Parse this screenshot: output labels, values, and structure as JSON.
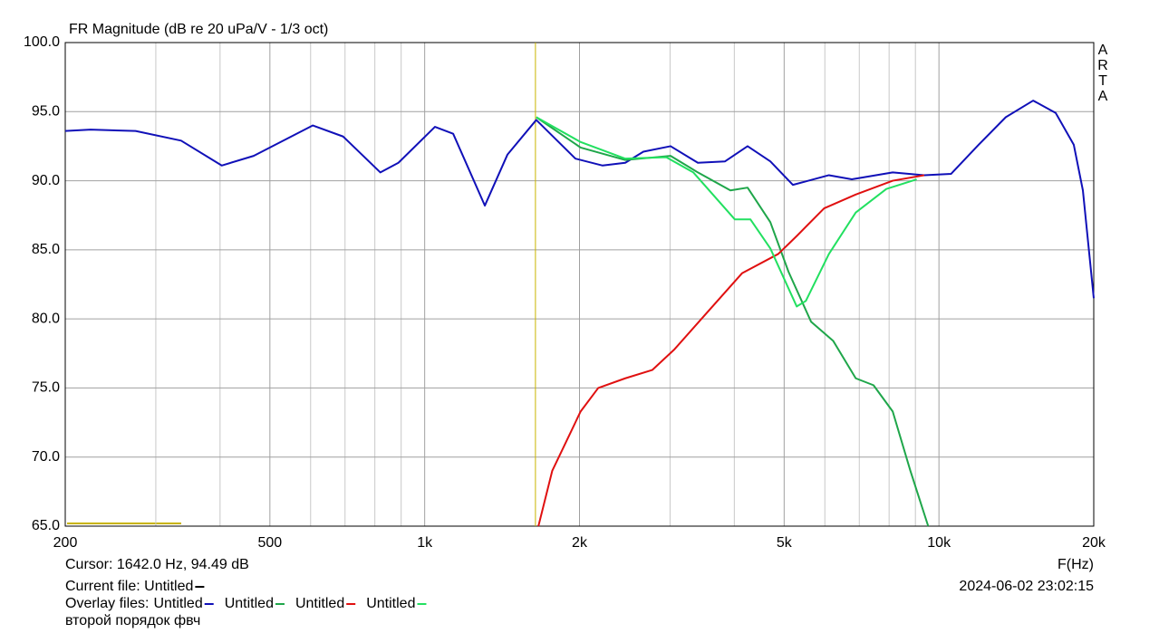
{
  "chart_data": {
    "type": "line",
    "title": "FR Magnitude (dB re 20 uPa/V - 1/3 oct)",
    "x_label": "F(Hz)",
    "side_label": "ARTA",
    "xlog": true,
    "grid": true,
    "xlim": [
      200,
      20000
    ],
    "ylim": [
      65,
      100
    ],
    "xticks": [
      200,
      500,
      {
        "value": 1000,
        "label": "1k"
      },
      {
        "value": 2000,
        "label": "2k"
      },
      {
        "value": 5000,
        "label": "5k"
      },
      {
        "value": 10000,
        "label": "10k"
      },
      {
        "value": 20000,
        "label": "20k"
      }
    ],
    "xgrid_minor": [
      300,
      400,
      600,
      700,
      800,
      900,
      3000,
      4000,
      6000,
      7000,
      8000,
      9000
    ],
    "yticks": [
      {
        "value": 100,
        "label": "100.0"
      },
      {
        "value": 95,
        "label": "95.0"
      },
      {
        "value": 90,
        "label": "90.0"
      },
      {
        "value": 85,
        "label": "85.0"
      },
      {
        "value": 80,
        "label": "80.0"
      },
      {
        "value": 75,
        "label": "75.0"
      },
      {
        "value": 70,
        "label": "70.0"
      },
      {
        "value": 65,
        "label": "65.0"
      }
    ],
    "cursor_x": 1642,
    "cursor_color": "#c8b400",
    "cursor_text": "Cursor: 1642.0 Hz, 94.49 dB",
    "current_file_label": "Current file: Untitled",
    "overlay_label": "Overlay files:",
    "timestamp": "2024-06-02  23:02:15",
    "note": "второй порядок фвч",
    "series": [
      {
        "name": "Untitled",
        "color": "#1010b8",
        "x": [
          200,
          224,
          274,
          336,
          403,
          465,
          606,
          694,
          820,
          889,
          1047,
          1136,
          1309,
          1449,
          1648,
          1964,
          2218,
          2455,
          2662,
          3007,
          3398,
          3837,
          4245,
          4700,
          5200,
          6110,
          6770,
          8130,
          9360,
          10560,
          11940,
          13490,
          15250,
          16870,
          18290,
          19050,
          20000
        ],
        "values": [
          93.6,
          93.7,
          93.6,
          92.9,
          91.1,
          91.8,
          94.0,
          93.2,
          90.6,
          91.3,
          93.9,
          93.4,
          88.2,
          91.9,
          94.4,
          91.6,
          91.1,
          91.3,
          92.1,
          92.5,
          91.3,
          91.4,
          92.5,
          91.4,
          89.7,
          90.4,
          90.1,
          90.6,
          90.4,
          90.5,
          92.6,
          94.6,
          95.8,
          94.9,
          92.6,
          89.3,
          81.5
        ]
      },
      {
        "name": "Untitled",
        "color": "#1fa64a",
        "x": [
          1648,
          2010,
          2455,
          3007,
          3398,
          3931,
          4245,
          4700,
          5100,
          5640,
          6230,
          6890,
          7460,
          8130,
          8800,
          9530
        ],
        "values": [
          94.6,
          92.4,
          91.5,
          91.8,
          90.6,
          89.3,
          89.5,
          87.0,
          83.4,
          79.8,
          78.4,
          75.7,
          75.2,
          73.3,
          69.0,
          65.0
        ]
      },
      {
        "name": "Untitled",
        "color": "#e01010",
        "x": [
          1664,
          1770,
          2010,
          2175,
          2455,
          2770,
          3060,
          3510,
          4140,
          4870,
          5290,
          5980,
          6890,
          8130,
          9360
        ],
        "values": [
          65.0,
          69.0,
          73.3,
          75.0,
          75.7,
          76.3,
          77.8,
          80.3,
          83.3,
          84.7,
          86.0,
          88.0,
          89.0,
          90.0,
          90.4
        ]
      },
      {
        "name": "Untitled",
        "color": "#22e060",
        "x": [
          1648,
          2010,
          2455,
          2950,
          3330,
          4010,
          4300,
          4700,
          5290,
          5510,
          6110,
          6890,
          7900,
          9050
        ],
        "values": [
          94.6,
          92.8,
          91.6,
          91.7,
          90.6,
          87.2,
          87.2,
          85.1,
          80.9,
          81.3,
          84.7,
          87.7,
          89.4,
          90.1
        ]
      }
    ]
  }
}
